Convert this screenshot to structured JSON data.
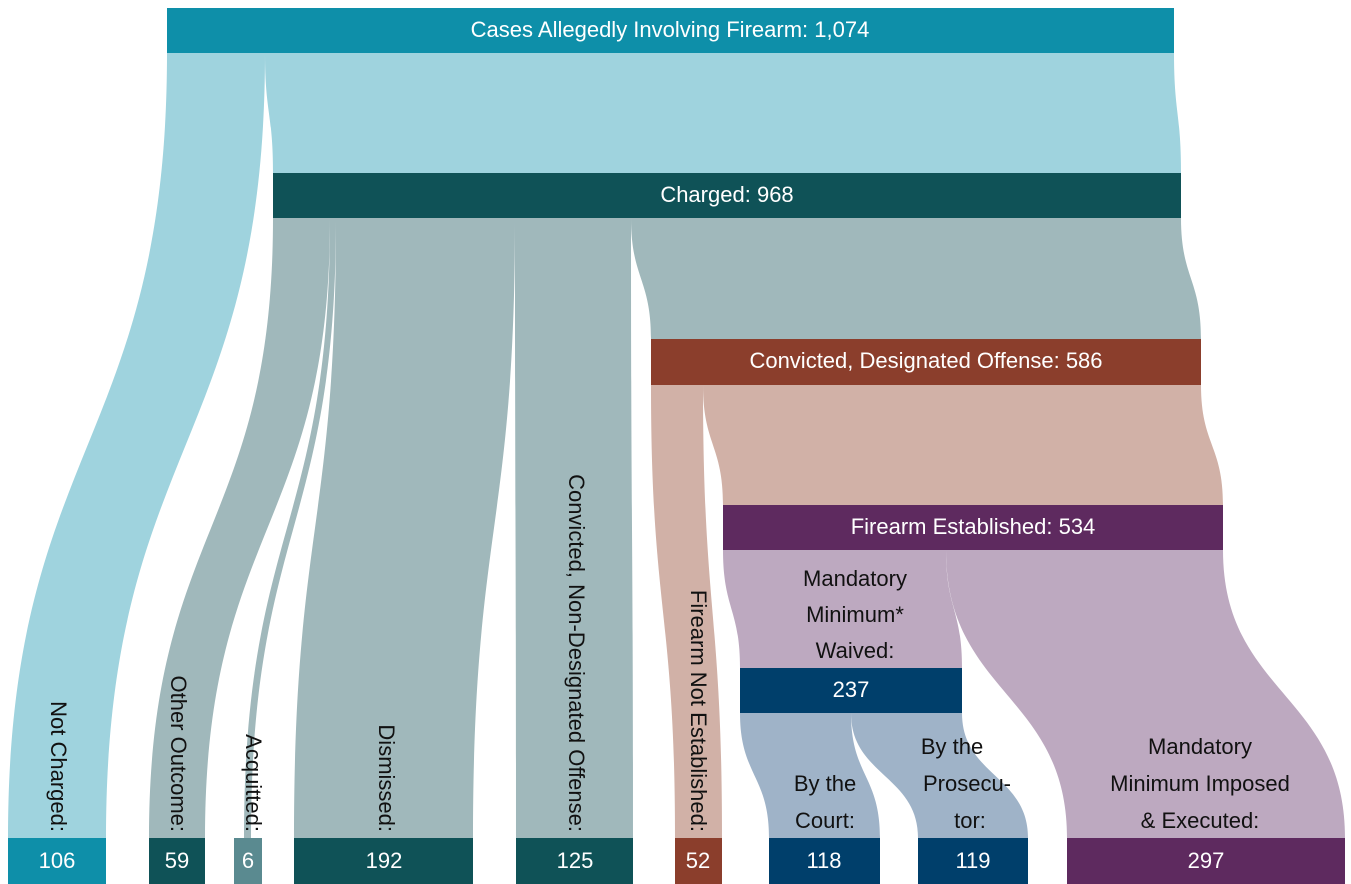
{
  "nodes": {
    "cases": {
      "label": "Cases Allegedly Involving Firearm:",
      "value": "1,074"
    },
    "charged": {
      "label": "Charged:",
      "value": 968
    },
    "convicted": {
      "label": "Convicted, Designated Offense:",
      "value": 586
    },
    "established": {
      "label": "Firearm Established:",
      "value": 534
    },
    "waived": {
      "label": [
        "Mandatory",
        "Minimum*",
        "Waived:"
      ],
      "value": 237
    },
    "not_charged": {
      "label": "Not Charged:",
      "value": 106
    },
    "other_outcome": {
      "label": "Other Outcome:",
      "value": 59
    },
    "acquitted": {
      "label": "Acquitted:",
      "value": 6
    },
    "dismissed": {
      "label": "Dismissed:",
      "value": 192
    },
    "non_designated": {
      "label": "Convicted, Non-Designated Offense:",
      "value": 125
    },
    "not_established": {
      "label": "Firearm Not Established:",
      "value": 52
    },
    "by_court": {
      "label": [
        "By the",
        "Court:"
      ],
      "value": 118
    },
    "by_prosecutor": {
      "label": [
        "By the",
        "Prosecu-",
        "tor:"
      ],
      "value": 119
    },
    "imposed": {
      "label": [
        "Mandatory",
        "Minimum Imposed",
        "& Executed:"
      ],
      "value": 297
    }
  }
}
